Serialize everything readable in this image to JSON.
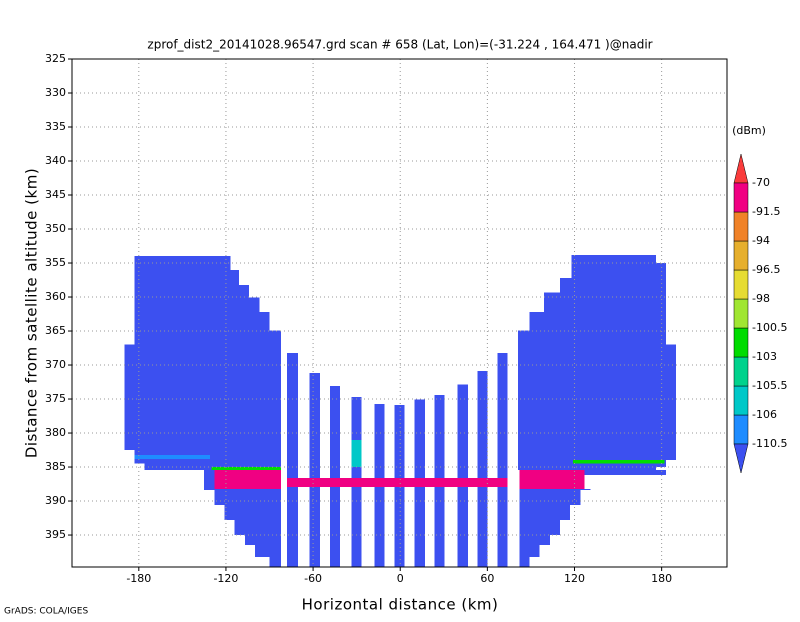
{
  "chart_data": {
    "type": "heatmap",
    "title": "zprof_dist2_20141028.96547.grd  scan # 658  (Lat, Lon)=(-31.224 , 164.471 )@nadir",
    "x_label": "Horizontal distance (km)",
    "y_label": "Distance from satellite altitude (km)",
    "footer": "GrADS: COLA/IGES",
    "xlim": [
      -226,
      225
    ],
    "ylim": [
      325,
      399.7
    ],
    "y_inverted": true,
    "xticks": [
      -180,
      -120,
      -60,
      0,
      60,
      120,
      180
    ],
    "yticks": [
      325,
      330,
      335,
      340,
      345,
      350,
      355,
      360,
      365,
      370,
      375,
      380,
      385,
      390,
      395
    ],
    "grid": true,
    "colorbar": {
      "unit": "(dBm)",
      "levels": [
        -110.5,
        -106,
        -105.5,
        -103,
        -100.5,
        -98,
        -96.5,
        -94,
        -91.5,
        -70
      ],
      "colors": [
        "#3c50f0",
        "#1e8cff",
        "#00c8c8",
        "#00d28c",
        "#00dc00",
        "#a0e632",
        "#e6dc32",
        "#e6af2d",
        "#f08228",
        "#f00082",
        "#fa3c3c"
      ]
    },
    "cells": [
      [
        -190,
        -183,
        367,
        382.5,
        -112
      ],
      [
        -183,
        -176,
        354,
        384.5,
        -112
      ],
      [
        -176,
        -117,
        354,
        385.4,
        -112
      ],
      [
        -117,
        -111,
        356,
        385.4,
        -112
      ],
      [
        -111,
        -104,
        358.2,
        385.4,
        -112
      ],
      [
        -104,
        -97,
        360.1,
        385.4,
        -112
      ],
      [
        -97,
        -90,
        362.2,
        385.4,
        -112
      ],
      [
        -90,
        -82,
        364.9,
        385.4,
        -112
      ],
      [
        -135,
        -128,
        385.4,
        388.4,
        -112
      ],
      [
        -183,
        -131,
        383.2,
        383.8,
        -107
      ],
      [
        -130,
        -82,
        385,
        385.4,
        -101
      ],
      [
        -128,
        -82,
        385.4,
        388.2,
        -85
      ],
      [
        -128,
        -121,
        388.2,
        390.6,
        -112
      ],
      [
        -121,
        -114,
        388.2,
        392.8,
        -112
      ],
      [
        -114,
        -107,
        388.2,
        395,
        -112
      ],
      [
        -107,
        -100,
        388.2,
        396.5,
        -112
      ],
      [
        -100,
        -90,
        388.2,
        398.2,
        -112
      ],
      [
        -90,
        -82,
        388.2,
        399.7,
        -112
      ],
      [
        -78.1,
        -70.5,
        368.2,
        399.7,
        -112
      ],
      [
        -62.3,
        -55.4,
        371.2,
        399.7,
        -112
      ],
      [
        -48.5,
        -41.6,
        373.1,
        399.7,
        -112
      ],
      [
        -33.4,
        -26.5,
        374.7,
        399.7,
        -112
      ],
      [
        -17.6,
        -10.7,
        375.7,
        399.7,
        -112
      ],
      [
        -3.8,
        3.1,
        375.9,
        399.7,
        -112
      ],
      [
        10,
        16.9,
        375.1,
        399.7,
        -112
      ],
      [
        23.7,
        30.6,
        374.4,
        399.7,
        -112
      ],
      [
        39.6,
        46.5,
        372.9,
        399.7,
        -112
      ],
      [
        53.3,
        60.2,
        370.9,
        399.7,
        -112
      ],
      [
        67.1,
        74,
        368.2,
        399.7,
        -112
      ],
      [
        -33.4,
        -26.5,
        381,
        385,
        -105.8
      ],
      [
        -78.1,
        74,
        386.6,
        387.9,
        -85
      ],
      [
        81,
        89,
        364.9,
        385.4,
        -112
      ],
      [
        89,
        99,
        362.2,
        385.4,
        -112
      ],
      [
        99,
        110,
        359.3,
        385.4,
        -112
      ],
      [
        110,
        118,
        357.2,
        385.4,
        -112
      ],
      [
        118,
        176,
        353.8,
        385.4,
        -112
      ],
      [
        176,
        183,
        355,
        385,
        -112
      ],
      [
        183,
        190,
        367,
        384,
        -112
      ],
      [
        127,
        183,
        385.4,
        386.2,
        -112
      ],
      [
        119,
        182,
        384,
        384.5,
        -101
      ],
      [
        82,
        127,
        385.4,
        388.2,
        -85
      ],
      [
        82,
        89,
        388.2,
        399.7,
        -112
      ],
      [
        89,
        96,
        388.2,
        398.2,
        -112
      ],
      [
        96,
        103,
        388.2,
        396.5,
        -112
      ],
      [
        103,
        110,
        388.2,
        395,
        -112
      ],
      [
        110,
        117,
        388.2,
        392.8,
        -112
      ],
      [
        117,
        124,
        388.2,
        390.6,
        -112
      ],
      [
        124,
        131,
        388.2,
        388.4,
        -112
      ]
    ]
  }
}
